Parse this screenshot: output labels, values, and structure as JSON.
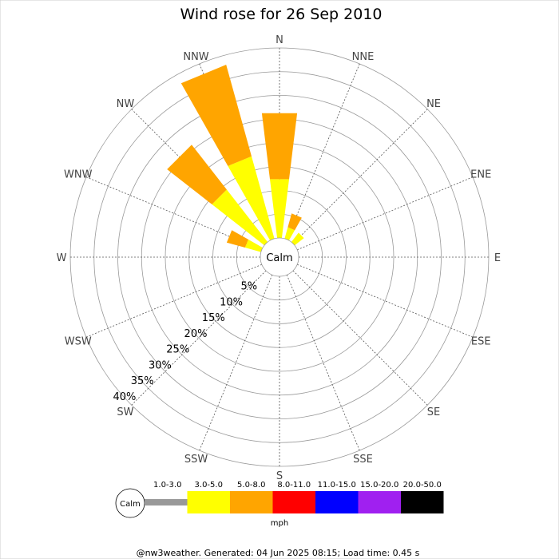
{
  "chart_data": {
    "type": "wind-rose",
    "title": "Wind rose for 26 Sep 2010",
    "calm_label": "Calm",
    "directions": [
      "N",
      "NNE",
      "NE",
      "ENE",
      "E",
      "ESE",
      "SE",
      "SSE",
      "S",
      "SSW",
      "SW",
      "WSW",
      "W",
      "WNW",
      "NW",
      "NNW"
    ],
    "radial_ticks": [
      5,
      10,
      15,
      20,
      25,
      30,
      35,
      40
    ],
    "radial_tick_labels": [
      "5%",
      "10%",
      "15%",
      "20%",
      "25%",
      "30%",
      "35%",
      "40%"
    ],
    "radial_max": 40,
    "grid": true,
    "speed_bins": [
      {
        "label": "1.0-3.0",
        "color": "#999999"
      },
      {
        "label": "3.0-5.0",
        "color": "#ffff00"
      },
      {
        "label": "5.0-8.0",
        "color": "#ffa500"
      },
      {
        "label": "8.0-11.0",
        "color": "#ff0000"
      },
      {
        "label": "11.0-15.0",
        "color": "#0000ff"
      },
      {
        "label": "15.0-20.0",
        "color": "#a020f0"
      },
      {
        "label": "20.0-50.0",
        "color": "#000000"
      }
    ],
    "units": "mph",
    "series": [
      {
        "direction": "N",
        "segments": [
          {
            "bin": "3.0-5.0",
            "from": 0,
            "to": 12.5
          },
          {
            "bin": "5.0-8.0",
            "from": 12.5,
            "to": 26.5
          }
        ]
      },
      {
        "direction": "NNE",
        "segments": [
          {
            "bin": "3.0-5.0",
            "from": 0,
            "to": 2.5
          },
          {
            "bin": "5.0-8.0",
            "from": 2.5,
            "to": 5.5
          }
        ]
      },
      {
        "direction": "NE",
        "segments": [
          {
            "bin": "3.0-5.0",
            "from": 0,
            "to": 2.5
          }
        ]
      },
      {
        "direction": "NW",
        "segments": [
          {
            "bin": "3.0-5.0",
            "from": 0,
            "to": 14.0
          },
          {
            "bin": "5.0-8.0",
            "from": 14.0,
            "to": 26.0
          }
        ]
      },
      {
        "direction": "NNW",
        "segments": [
          {
            "bin": "3.0-5.0",
            "from": 0,
            "to": 18.0
          },
          {
            "bin": "5.0-8.0",
            "from": 18.0,
            "to": 38.0
          }
        ]
      },
      {
        "direction": "WNW",
        "segments": [
          {
            "bin": "3.0-5.0",
            "from": 0,
            "to": 3.5
          },
          {
            "bin": "5.0-8.0",
            "from": 3.5,
            "to": 7.5
          }
        ]
      }
    ]
  },
  "footer": "@nw3weather. Generated: 04 Jun 2025 08:15; Load time: 0.45 s"
}
